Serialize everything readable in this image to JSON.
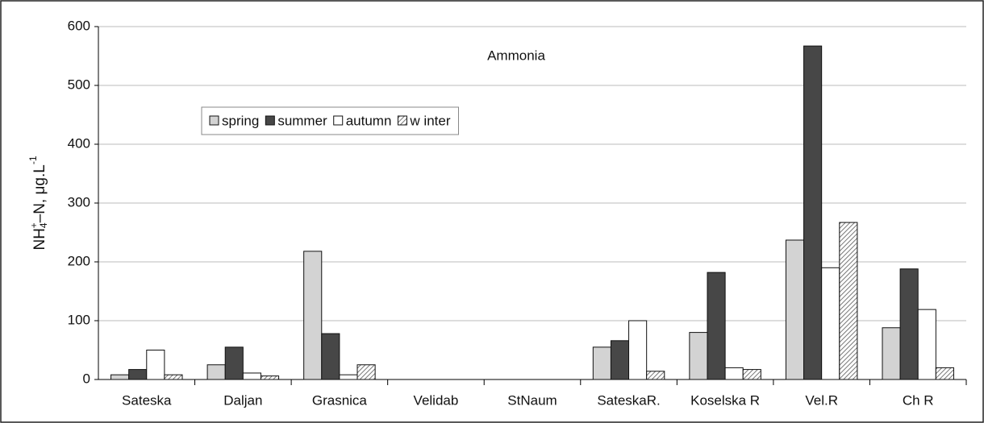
{
  "chart_data": {
    "type": "bar",
    "title": "Ammonia",
    "y_label_parts": [
      "NH",
      "4",
      "+",
      "–N, μg.L",
      "-1"
    ],
    "categories": [
      "Sateska",
      "Daljan",
      "Grasnica",
      "Velidab",
      "StNaum",
      "SateskaR.",
      "Koselska R",
      "Vel.R",
      "Ch R"
    ],
    "series": [
      {
        "name": "spring",
        "color": "#d3d3d3",
        "values": [
          8,
          25,
          218,
          null,
          null,
          55,
          80,
          237,
          88
        ]
      },
      {
        "name": "summer",
        "color": "#474747",
        "values": [
          17,
          55,
          78,
          null,
          null,
          66,
          182,
          567,
          188
        ]
      },
      {
        "name": "autumn",
        "color": "#ffffff",
        "values": [
          50,
          11,
          8,
          null,
          null,
          100,
          20,
          190,
          119
        ]
      },
      {
        "name": "w inter",
        "color": "#9a9a9a",
        "hatch": true,
        "values": [
          8,
          6,
          25,
          null,
          null,
          14,
          17,
          267,
          20
        ]
      }
    ],
    "ylim": [
      0,
      600
    ],
    "yticks": [
      0,
      100,
      200,
      300,
      400,
      500,
      600
    ],
    "grid": true,
    "legend": "upper left"
  }
}
